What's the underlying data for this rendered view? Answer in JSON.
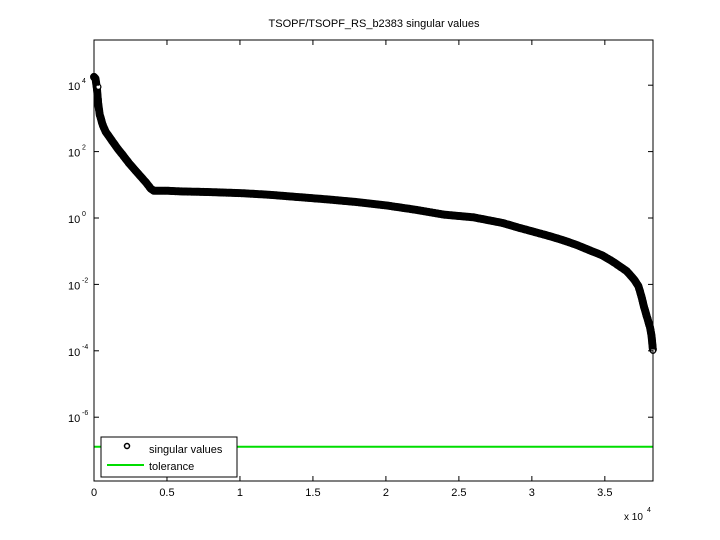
{
  "chart_data": {
    "type": "scatter",
    "title": "TSOPF/TSOPF_RS_b2383 singular values",
    "xlabel": "",
    "ylabel": "",
    "x_multiplier_label": "x 10",
    "x_multiplier_exp": "4",
    "xscale": "linear",
    "yscale": "log",
    "xlim": [
      0,
      38300
    ],
    "ylim": [
      1e-08,
      250000
    ],
    "grid": false,
    "legend_position": "lower left",
    "xticks": [
      {
        "value": 0,
        "label": "0"
      },
      {
        "value": 5000,
        "label": "0.5"
      },
      {
        "value": 10000,
        "label": "1"
      },
      {
        "value": 15000,
        "label": "1.5"
      },
      {
        "value": 20000,
        "label": "2"
      },
      {
        "value": 25000,
        "label": "2.5"
      },
      {
        "value": 30000,
        "label": "3"
      },
      {
        "value": 35000,
        "label": "3.5"
      }
    ],
    "yticks": [
      {
        "exp": 4,
        "label": "10",
        "sup": "4"
      },
      {
        "exp": 2,
        "label": "10",
        "sup": "2"
      },
      {
        "exp": 0,
        "label": "10",
        "sup": "0"
      },
      {
        "exp": -2,
        "label": "10",
        "sup": "-2"
      },
      {
        "exp": -4,
        "label": "10",
        "sup": "-4"
      },
      {
        "exp": -6,
        "label": "10",
        "sup": "-6"
      }
    ],
    "series": [
      {
        "name": "singular values",
        "marker": "circle",
        "color": "#000000",
        "x": [
          0,
          100,
          200,
          300,
          400,
          600,
          800,
          1200,
          1600,
          2000,
          2400,
          2800,
          3200,
          3600,
          3900,
          4100,
          4300,
          5000,
          6000,
          8000,
          10000,
          12000,
          14000,
          16000,
          18000,
          20000,
          22000,
          24000,
          26000,
          28000,
          29000,
          30000,
          31000,
          32000,
          33000,
          34000,
          34800,
          35500,
          36000,
          36500,
          37000,
          37300,
          37500,
          37700,
          37900,
          38100,
          38200,
          38300
        ],
        "log10_y": [
          4.25,
          4.2,
          3.9,
          3.4,
          3.1,
          2.8,
          2.6,
          2.35,
          2.1,
          1.88,
          1.65,
          1.45,
          1.25,
          1.05,
          0.88,
          0.82,
          0.82,
          0.82,
          0.8,
          0.78,
          0.75,
          0.7,
          0.63,
          0.56,
          0.48,
          0.38,
          0.25,
          0.1,
          0.02,
          -0.15,
          -0.28,
          -0.4,
          -0.52,
          -0.65,
          -0.8,
          -0.98,
          -1.12,
          -1.3,
          -1.45,
          -1.6,
          -1.85,
          -2.05,
          -2.35,
          -2.7,
          -3.0,
          -3.3,
          -3.55,
          -4.0
        ]
      },
      {
        "name": "tolerance",
        "marker": "line",
        "color": "#00dd00",
        "value": 1.3e-07,
        "log10_y": -6.89
      }
    ],
    "legend": [
      {
        "label": "singular values",
        "symbol": "circle-marker"
      },
      {
        "label": "tolerance",
        "symbol": "green-line"
      }
    ]
  },
  "legend": {
    "item1": "singular values",
    "item2": "tolerance"
  }
}
